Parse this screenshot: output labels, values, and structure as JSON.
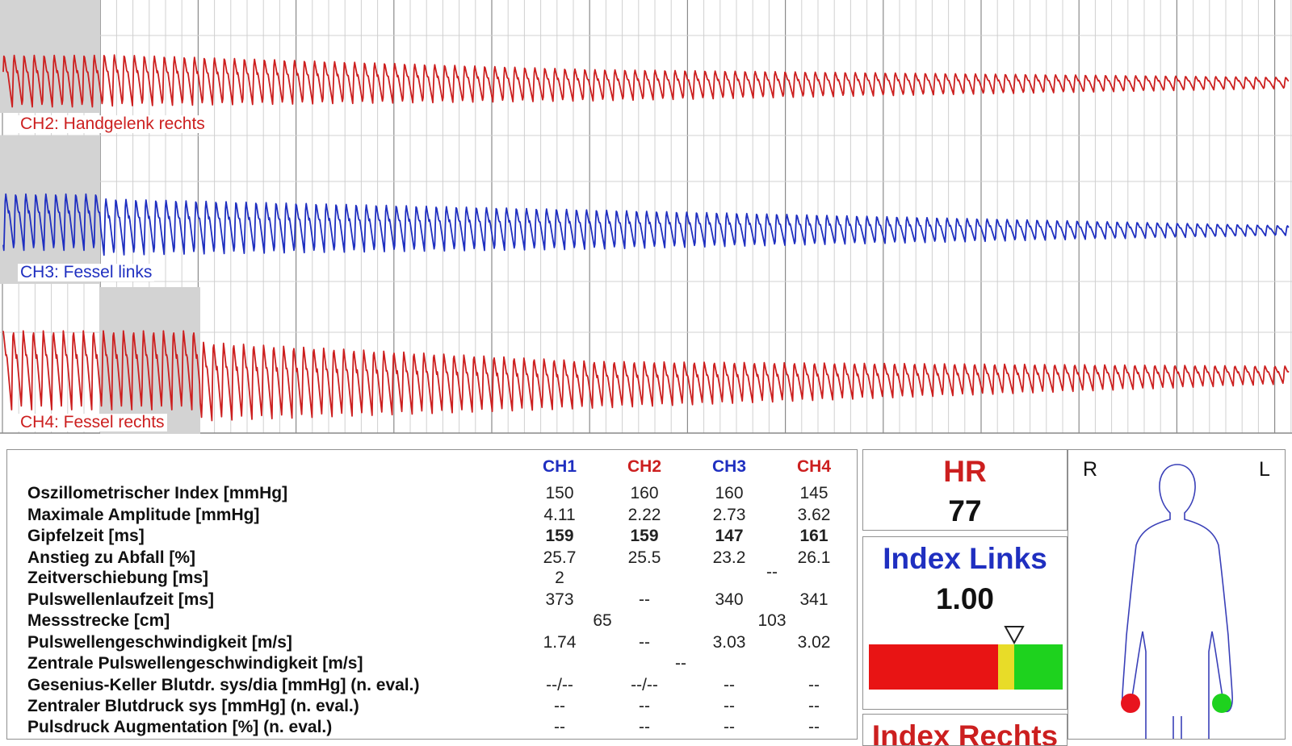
{
  "channels": {
    "ch2": {
      "label": "CH2: Handgelenk rechts",
      "color": "#cc1f1f"
    },
    "ch3": {
      "label": "CH3: Fessel links",
      "color": "#1f2fc0"
    },
    "ch4": {
      "label": "CH4: Fessel rechts",
      "color": "#cc1f1f"
    }
  },
  "table": {
    "headers": [
      {
        "label": "CH1",
        "color": "#1f2fc0"
      },
      {
        "label": "CH2",
        "color": "#cc1f1f"
      },
      {
        "label": "CH3",
        "color": "#1f2fc0"
      },
      {
        "label": "CH4",
        "color": "#cc1f1f"
      }
    ],
    "rows": [
      {
        "label": "Oszillometrischer Index [mmHg]",
        "values": [
          "150",
          "160",
          "160",
          "145"
        ]
      },
      {
        "label": "Maximale Amplitude [mmHg]",
        "values": [
          "4.11",
          "2.22",
          "2.73",
          "3.62"
        ]
      },
      {
        "label": "Gipfelzeit [ms]",
        "values": [
          "159",
          "159",
          "147",
          "161"
        ],
        "bold": true
      },
      {
        "label": "Anstieg zu Abfall [%]",
        "values": [
          "25.7",
          "25.5",
          "23.2",
          "26.1"
        ]
      },
      {
        "label": "Zeitverschiebung [ms]",
        "pairs": [
          "2",
          "--"
        ]
      },
      {
        "label": "Pulswellenlaufzeit [ms]",
        "values": [
          "373",
          "--",
          "340",
          "341"
        ]
      },
      {
        "label": "Messstrecke [cm]",
        "pairs": [
          "65",
          "103"
        ]
      },
      {
        "label": "Pulswellengeschwindigkeit [m/s]",
        "values": [
          "1.74",
          "--",
          "3.03",
          "3.02"
        ]
      },
      {
        "label": "Zentrale Pulswellengeschwindigkeit [m/s]",
        "center": "--"
      },
      {
        "label": "Gesenius-Keller Blutdr. sys/dia [mmHg] (n. eval.)",
        "values": [
          "--/--",
          "--/--",
          "--",
          "--"
        ]
      },
      {
        "label": "Zentraler Blutdruck sys [mmHg] (n. eval.)",
        "values": [
          "--",
          "--",
          "--",
          "--"
        ]
      },
      {
        "label": "Pulsdruck Augmentation [%] (n. eval.)",
        "values": [
          "--",
          "--",
          "--",
          "--"
        ]
      }
    ]
  },
  "hr": {
    "label": "HR",
    "value": "77",
    "color": "#cc1f1f"
  },
  "index_links": {
    "label": "Index Links",
    "value": "1.00",
    "color": "#1f2fc0",
    "marker_value": 1.0
  },
  "index_rechts": {
    "label": "Index Rechts",
    "color": "#cc1f1f"
  },
  "body": {
    "right_label": "R",
    "left_label": "L",
    "right_dot_color": "#e8141e",
    "left_dot_color": "#1ed21e"
  }
}
